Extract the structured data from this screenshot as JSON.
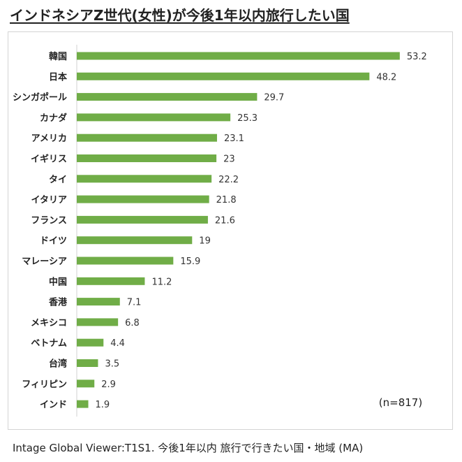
{
  "title": "インドネシアZ世代(女性)が今後1年以内旅行したい国",
  "footer": "Intage Global Viewer:T1S1. 今後1年以内  旅行で行きたい国・地域 (MA)",
  "chart_data": {
    "type": "bar",
    "orientation": "horizontal",
    "title": "インドネシアZ世代(女性)が今後1年以内旅行したい国",
    "xlabel": "",
    "ylabel": "",
    "xlim": [
      0,
      60
    ],
    "grid": false,
    "color": "#70ad47",
    "note": "(n=817)",
    "categories": [
      "韓国",
      "日本",
      "シンガポール",
      "カナダ",
      "アメリカ",
      "イギリス",
      "タイ",
      "イタリア",
      "フランス",
      "ドイツ",
      "マレーシア",
      "中国",
      "香港",
      "メキシコ",
      "ベトナム",
      "台湾",
      "フィリピン",
      "インド"
    ],
    "values": [
      53.2,
      48.2,
      29.7,
      25.3,
      23.1,
      23,
      22.2,
      21.8,
      21.6,
      19,
      15.9,
      11.2,
      7.1,
      6.8,
      4.4,
      3.5,
      2.9,
      1.9
    ]
  }
}
